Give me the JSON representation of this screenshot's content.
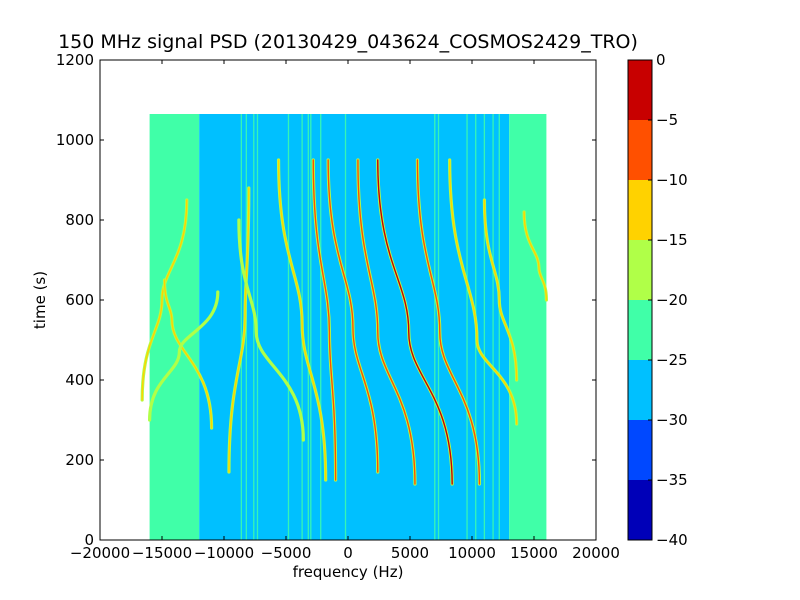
{
  "chart_data": {
    "type": "heatmap",
    "title": "150 MHz signal PSD (20130429_043624_COSMOS2429_TRO)",
    "xlabel": "frequency (Hz)",
    "ylabel": "time (s)",
    "xlim": [
      -20000,
      20000
    ],
    "ylim": [
      0,
      1200
    ],
    "xticks": [
      -20000,
      -15000,
      -10000,
      -5000,
      0,
      5000,
      10000,
      15000,
      20000
    ],
    "xtick_labels": [
      "−20000",
      "−15000",
      "−10000",
      "−5000",
      "0",
      "5000",
      "10000",
      "15000",
      "20000"
    ],
    "yticks": [
      0,
      200,
      400,
      600,
      800,
      1000,
      1200
    ],
    "ytick_labels": [
      "0",
      "200",
      "400",
      "600",
      "800",
      "1000",
      "1200"
    ],
    "data_extent": {
      "x": [
        -16000,
        16000
      ],
      "y": [
        0,
        1065
      ]
    },
    "colorbar": {
      "levels": [
        -40,
        -35,
        -30,
        -25,
        -20,
        -15,
        -10,
        -5,
        0
      ],
      "tick_labels": [
        "−40",
        "−35",
        "−30",
        "−25",
        "−20",
        "−15",
        "−10",
        "−5",
        "0"
      ],
      "colors": [
        "#0000b8",
        "#0048ff",
        "#00c0ff",
        "#40ffa8",
        "#b0ff48",
        "#ffd200",
        "#ff5000",
        "#c80000"
      ]
    },
    "background_bands": [
      {
        "x": [
          -16000,
          -12000
        ],
        "level": -22.5
      },
      {
        "x": [
          -12000,
          7000
        ],
        "level": -27.5
      },
      {
        "x": [
          7000,
          13000
        ],
        "level": -27.5
      },
      {
        "x": [
          13000,
          16000
        ],
        "level": -22.5
      }
    ],
    "vertical_lines": [
      -8600,
      -8200,
      -7600,
      -7300,
      -4800,
      -3700,
      -3200,
      -3000,
      -2200,
      -200,
      7000,
      7300,
      9600,
      10300,
      11000,
      11700,
      12200
    ],
    "traces": [
      {
        "x_top": -13000,
        "x_mid": -15000,
        "x_bot": -16600,
        "t_top": 850,
        "t_mid": 600,
        "t_bot": 350,
        "level": -12
      },
      {
        "x_top": -14800,
        "x_mid": -14200,
        "x_bot": -11000,
        "t_top": 650,
        "t_mid": 550,
        "t_bot": 280,
        "level": -13
      },
      {
        "x_top": -10500,
        "x_mid": -13600,
        "x_bot": -16000,
        "t_top": 620,
        "t_mid": 470,
        "t_bot": 300,
        "level": -16
      },
      {
        "x_top": -8000,
        "x_mid": -8300,
        "x_bot": -9600,
        "t_top": 880,
        "t_mid": 560,
        "t_bot": 170,
        "level": -14
      },
      {
        "x_top": -8800,
        "x_mid": -7400,
        "x_bot": -3600,
        "t_top": 800,
        "t_mid": 520,
        "t_bot": 250,
        "level": -18
      },
      {
        "x_top": -5600,
        "x_mid": -3700,
        "x_bot": -1800,
        "t_top": 950,
        "t_mid": 540,
        "t_bot": 150,
        "level": -12
      },
      {
        "x_top": -2800,
        "x_mid": -1500,
        "x_bot": -1000,
        "t_top": 950,
        "t_mid": 520,
        "t_bot": 150,
        "level": -8
      },
      {
        "x_top": -1600,
        "x_mid": 400,
        "x_bot": 2400,
        "t_top": 950,
        "t_mid": 530,
        "t_bot": 170,
        "level": -6
      },
      {
        "x_top": 800,
        "x_mid": 2400,
        "x_bot": 5400,
        "t_top": 950,
        "t_mid": 520,
        "t_bot": 140,
        "level": -6
      },
      {
        "x_top": 2400,
        "x_mid": 4900,
        "x_bot": 8400,
        "t_top": 950,
        "t_mid": 520,
        "t_bot": 140,
        "level": -5
      },
      {
        "x_top": 5600,
        "x_mid": 7400,
        "x_bot": 10600,
        "t_top": 950,
        "t_mid": 520,
        "t_bot": 140,
        "level": -8
      },
      {
        "x_top": 8200,
        "x_mid": 10400,
        "x_bot": 13600,
        "t_top": 950,
        "t_mid": 500,
        "t_bot": 290,
        "level": -12
      },
      {
        "x_top": 11000,
        "x_mid": 12200,
        "x_bot": 13600,
        "t_top": 850,
        "t_mid": 600,
        "t_bot": 400,
        "level": -14
      },
      {
        "x_top": 14200,
        "x_mid": 15400,
        "x_bot": 16000,
        "t_top": 820,
        "t_mid": 680,
        "t_bot": 600,
        "level": -12
      }
    ]
  }
}
